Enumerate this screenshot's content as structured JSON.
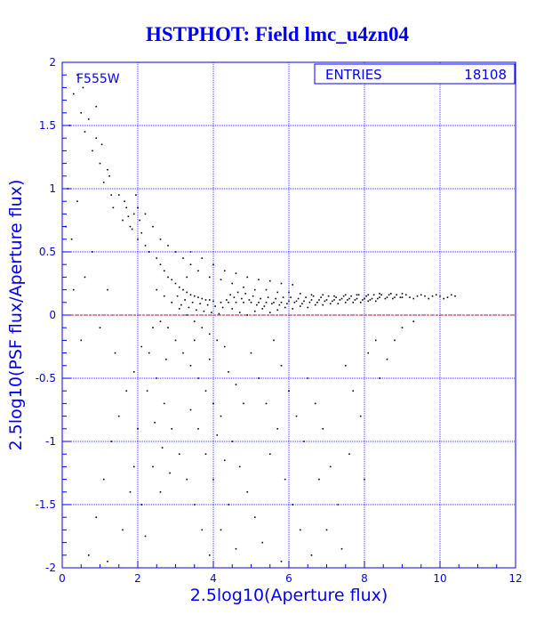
{
  "chart_data": {
    "type": "scatter",
    "title": "HSTPHOT: Field lmc_u4zn04",
    "xlabel": "2.5log10(Aperture flux)",
    "ylabel": "2.5log10(PSF flux/Aperture flux)",
    "xlim": [
      0,
      12
    ],
    "ylim": [
      -2,
      2
    ],
    "x_ticks": [
      "0",
      "2",
      "4",
      "6",
      "8",
      "10",
      "12"
    ],
    "y_ticks": [
      "-2",
      "-1.5",
      "-1",
      "-0.5",
      "0",
      "0.5",
      "1",
      "1.5",
      "2"
    ],
    "grid": true,
    "reference_line": {
      "y": 0,
      "color": "#ff0000",
      "style": "dashed"
    },
    "filter_label": "F555W",
    "stats_box": {
      "label": "ENTRIES",
      "value": "18108"
    },
    "point_color": "#000000",
    "axis_color": "#0000ff",
    "grid_color": "#0000ff",
    "series": [
      {
        "points": [
          [
            0.3,
            1.75
          ],
          [
            0.5,
            1.6
          ],
          [
            0.6,
            1.45
          ],
          [
            0.7,
            1.55
          ],
          [
            0.8,
            1.3
          ],
          [
            0.9,
            1.4
          ],
          [
            1.0,
            1.2
          ],
          [
            1.1,
            1.05
          ],
          [
            1.2,
            1.15
          ],
          [
            1.3,
            0.95
          ],
          [
            0.4,
            1.9
          ],
          [
            0.55,
            1.8
          ],
          [
            0.9,
            1.65
          ],
          [
            1.05,
            1.35
          ],
          [
            1.25,
            1.1
          ],
          [
            1.35,
            0.85
          ],
          [
            1.5,
            0.95
          ],
          [
            1.6,
            0.75
          ],
          [
            1.7,
            0.85
          ],
          [
            1.8,
            0.7
          ],
          [
            1.9,
            0.8
          ],
          [
            2.0,
            0.6
          ],
          [
            2.1,
            0.65
          ],
          [
            2.2,
            0.55
          ],
          [
            2.3,
            0.5
          ],
          [
            1.65,
            0.9
          ],
          [
            1.75,
            0.78
          ],
          [
            1.85,
            0.68
          ],
          [
            0.2,
            1.5
          ],
          [
            0.15,
            1.0
          ],
          [
            0.25,
            0.6
          ],
          [
            0.4,
            0.9
          ],
          [
            0.6,
            0.3
          ],
          [
            0.8,
            0.5
          ],
          [
            1.0,
            -0.1
          ],
          [
            1.2,
            0.2
          ],
          [
            1.4,
            -0.3
          ],
          [
            1.5,
            -0.8
          ],
          [
            1.3,
            -1.0
          ],
          [
            1.1,
            -1.3
          ],
          [
            0.9,
            -1.6
          ],
          [
            0.7,
            -1.9
          ],
          [
            1.2,
            -1.95
          ],
          [
            1.6,
            -1.7
          ],
          [
            1.8,
            -1.4
          ],
          [
            1.9,
            -1.2
          ],
          [
            2.0,
            -0.9
          ],
          [
            2.1,
            -1.5
          ],
          [
            2.2,
            -1.75
          ],
          [
            2.4,
            -1.2
          ],
          [
            2.5,
            0.45
          ],
          [
            2.6,
            0.4
          ],
          [
            2.7,
            0.35
          ],
          [
            2.8,
            0.3
          ],
          [
            2.9,
            0.28
          ],
          [
            3.0,
            0.25
          ],
          [
            3.1,
            0.22
          ],
          [
            3.2,
            0.2
          ],
          [
            3.3,
            0.18
          ],
          [
            3.4,
            0.16
          ],
          [
            3.5,
            0.15
          ],
          [
            3.6,
            0.14
          ],
          [
            3.7,
            0.13
          ],
          [
            3.8,
            0.12
          ],
          [
            3.9,
            0.12
          ],
          [
            4.0,
            0.11
          ],
          [
            4.2,
            0.1
          ],
          [
            4.4,
            0.1
          ],
          [
            4.6,
            0.1
          ],
          [
            4.8,
            0.1
          ],
          [
            5.0,
            0.1
          ],
          [
            5.2,
            0.1
          ],
          [
            5.4,
            0.1
          ],
          [
            5.6,
            0.1
          ],
          [
            5.8,
            0.1
          ],
          [
            6.0,
            0.11
          ],
          [
            6.2,
            0.11
          ],
          [
            6.4,
            0.11
          ],
          [
            6.6,
            0.12
          ],
          [
            6.8,
            0.12
          ],
          [
            7.0,
            0.12
          ],
          [
            7.2,
            0.12
          ],
          [
            7.4,
            0.13
          ],
          [
            7.6,
            0.13
          ],
          [
            7.8,
            0.13
          ],
          [
            8.0,
            0.13
          ],
          [
            8.2,
            0.13
          ],
          [
            8.4,
            0.14
          ],
          [
            8.6,
            0.14
          ],
          [
            8.8,
            0.14
          ],
          [
            9.0,
            0.14
          ],
          [
            9.2,
            0.14
          ],
          [
            9.4,
            0.15
          ],
          [
            9.6,
            0.15
          ],
          [
            9.8,
            0.15
          ],
          [
            10.0,
            0.15
          ],
          [
            10.2,
            0.14
          ],
          [
            10.4,
            0.15
          ],
          [
            2.5,
            0.2
          ],
          [
            2.7,
            0.15
          ],
          [
            2.9,
            0.1
          ],
          [
            3.1,
            0.05
          ],
          [
            3.3,
            0.0
          ],
          [
            3.5,
            -0.05
          ],
          [
            3.7,
            -0.1
          ],
          [
            3.9,
            -0.15
          ],
          [
            4.1,
            -0.2
          ],
          [
            4.3,
            -0.25
          ],
          [
            3.2,
            -0.3
          ],
          [
            3.4,
            -0.4
          ],
          [
            3.6,
            -0.5
          ],
          [
            3.8,
            -0.6
          ],
          [
            4.0,
            -0.7
          ],
          [
            4.2,
            -0.8
          ],
          [
            3.5,
            -0.2
          ],
          [
            3.9,
            -0.35
          ],
          [
            4.4,
            -0.45
          ],
          [
            4.6,
            -0.55
          ],
          [
            2.8,
            -0.1
          ],
          [
            3.0,
            -0.2
          ],
          [
            3.3,
            0.3
          ],
          [
            3.6,
            0.35
          ],
          [
            3.9,
            0.3
          ],
          [
            4.2,
            0.28
          ],
          [
            4.5,
            0.25
          ],
          [
            4.8,
            0.22
          ],
          [
            5.1,
            0.2
          ],
          [
            5.4,
            0.2
          ],
          [
            5.7,
            0.18
          ],
          [
            6.0,
            0.18
          ],
          [
            6.3,
            0.17
          ],
          [
            6.6,
            0.16
          ],
          [
            6.9,
            0.16
          ],
          [
            7.2,
            0.15
          ],
          [
            7.5,
            0.16
          ],
          [
            7.8,
            0.16
          ],
          [
            8.1,
            0.16
          ],
          [
            8.4,
            0.17
          ],
          [
            8.7,
            0.17
          ],
          [
            9.0,
            0.17
          ],
          [
            4.5,
            0.05
          ],
          [
            4.7,
            0.02
          ],
          [
            4.9,
            0.0
          ],
          [
            5.1,
            0.03
          ],
          [
            5.3,
            0.05
          ],
          [
            5.5,
            0.02
          ],
          [
            5.7,
            0.04
          ],
          [
            5.9,
            0.06
          ],
          [
            6.1,
            0.05
          ],
          [
            6.3,
            0.07
          ],
          [
            6.5,
            0.06
          ],
          [
            6.7,
            0.08
          ],
          [
            6.9,
            0.08
          ],
          [
            7.1,
            0.09
          ],
          [
            7.3,
            0.09
          ],
          [
            7.5,
            0.1
          ],
          [
            7.7,
            0.1
          ],
          [
            7.9,
            0.1
          ],
          [
            8.1,
            0.11
          ],
          [
            8.3,
            0.11
          ],
          [
            3.0,
            0.5
          ],
          [
            3.2,
            0.45
          ],
          [
            3.4,
            0.4
          ],
          [
            2.6,
            0.6
          ],
          [
            2.8,
            0.55
          ],
          [
            2.4,
            0.7
          ],
          [
            2.2,
            0.8
          ],
          [
            2.0,
            0.85
          ],
          [
            1.95,
            0.95
          ],
          [
            2.05,
            0.75
          ],
          [
            4.0,
            0.4
          ],
          [
            4.3,
            0.35
          ],
          [
            4.6,
            0.33
          ],
          [
            4.9,
            0.3
          ],
          [
            5.2,
            0.28
          ],
          [
            5.5,
            0.27
          ],
          [
            5.8,
            0.25
          ],
          [
            6.1,
            0.24
          ],
          [
            3.7,
            0.45
          ],
          [
            3.4,
            0.5
          ],
          [
            2.3,
            -0.3
          ],
          [
            2.5,
            -0.5
          ],
          [
            2.7,
            -0.7
          ],
          [
            2.9,
            -0.9
          ],
          [
            3.1,
            -1.1
          ],
          [
            3.3,
            -1.3
          ],
          [
            3.5,
            -1.5
          ],
          [
            3.7,
            -1.7
          ],
          [
            3.9,
            -1.9
          ],
          [
            2.6,
            -1.4
          ],
          [
            4.5,
            -1.0
          ],
          [
            4.7,
            -1.2
          ],
          [
            4.9,
            -1.4
          ],
          [
            5.1,
            -1.6
          ],
          [
            5.3,
            -1.8
          ],
          [
            5.5,
            -1.1
          ],
          [
            5.7,
            -0.9
          ],
          [
            5.9,
            -1.3
          ],
          [
            6.1,
            -1.5
          ],
          [
            6.3,
            -1.7
          ],
          [
            6.5,
            -0.5
          ],
          [
            6.7,
            -0.7
          ],
          [
            6.9,
            -0.9
          ],
          [
            7.1,
            -1.2
          ],
          [
            7.3,
            -1.5
          ],
          [
            7.5,
            -0.4
          ],
          [
            7.7,
            -0.6
          ],
          [
            7.9,
            -0.8
          ],
          [
            8.1,
            -0.3
          ],
          [
            8.3,
            -0.2
          ],
          [
            5.0,
            -0.3
          ],
          [
            5.2,
            -0.5
          ],
          [
            5.4,
            -0.7
          ],
          [
            5.6,
            -0.2
          ],
          [
            5.8,
            -0.4
          ],
          [
            6.0,
            -0.6
          ],
          [
            6.2,
            -0.8
          ],
          [
            6.4,
            -1.0
          ],
          [
            4.8,
            -0.7
          ],
          [
            4.4,
            -1.5
          ],
          [
            4.2,
            -1.7
          ],
          [
            4.0,
            -1.3
          ],
          [
            3.8,
            -1.1
          ],
          [
            3.6,
            -0.9
          ],
          [
            3.4,
            -0.75
          ],
          [
            4.1,
            -0.95
          ],
          [
            4.3,
            -1.15
          ],
          [
            4.6,
            -1.85
          ],
          [
            5.8,
            -1.95
          ],
          [
            6.6,
            -1.9
          ],
          [
            7.0,
            -1.7
          ],
          [
            7.4,
            -1.85
          ],
          [
            6.8,
            -1.3
          ],
          [
            7.6,
            -1.1
          ],
          [
            8.0,
            -1.3
          ],
          [
            8.4,
            -0.5
          ],
          [
            8.6,
            -0.35
          ],
          [
            8.8,
            -0.2
          ],
          [
            9.0,
            -0.1
          ],
          [
            9.3,
            -0.05
          ],
          [
            3.05,
            0.15
          ],
          [
            3.15,
            0.08
          ],
          [
            3.25,
            0.12
          ],
          [
            3.35,
            0.06
          ],
          [
            3.45,
            0.1
          ],
          [
            3.55,
            0.04
          ],
          [
            3.65,
            0.09
          ],
          [
            3.75,
            0.03
          ],
          [
            3.85,
            0.08
          ],
          [
            3.95,
            0.02
          ],
          [
            4.05,
            0.07
          ],
          [
            4.15,
            0.01
          ],
          [
            4.25,
            0.06
          ],
          [
            4.35,
            0.12
          ],
          [
            4.45,
            0.16
          ],
          [
            4.55,
            0.14
          ],
          [
            4.65,
            0.18
          ],
          [
            4.75,
            0.13
          ],
          [
            4.85,
            0.17
          ],
          [
            4.95,
            0.12
          ],
          [
            5.05,
            0.15
          ],
          [
            5.15,
            0.08
          ],
          [
            5.25,
            0.13
          ],
          [
            5.35,
            0.07
          ],
          [
            5.45,
            0.14
          ],
          [
            5.55,
            0.09
          ],
          [
            5.65,
            0.13
          ],
          [
            5.75,
            0.08
          ],
          [
            5.85,
            0.14
          ],
          [
            5.95,
            0.09
          ],
          [
            6.05,
            0.14
          ],
          [
            6.15,
            0.1
          ],
          [
            6.25,
            0.13
          ],
          [
            6.35,
            0.09
          ],
          [
            6.45,
            0.14
          ],
          [
            6.55,
            0.1
          ],
          [
            6.65,
            0.15
          ],
          [
            6.75,
            0.1
          ],
          [
            6.85,
            0.14
          ],
          [
            6.95,
            0.11
          ],
          [
            7.05,
            0.15
          ],
          [
            7.15,
            0.11
          ],
          [
            7.25,
            0.14
          ],
          [
            7.35,
            0.12
          ],
          [
            7.45,
            0.15
          ],
          [
            7.55,
            0.12
          ],
          [
            7.65,
            0.15
          ],
          [
            7.75,
            0.12
          ],
          [
            7.85,
            0.16
          ],
          [
            7.95,
            0.12
          ],
          [
            8.05,
            0.15
          ],
          [
            8.15,
            0.12
          ],
          [
            8.25,
            0.16
          ],
          [
            8.35,
            0.13
          ],
          [
            8.45,
            0.16
          ],
          [
            8.55,
            0.13
          ],
          [
            8.65,
            0.16
          ],
          [
            8.75,
            0.13
          ],
          [
            8.85,
            0.16
          ],
          [
            8.95,
            0.14
          ],
          [
            9.1,
            0.16
          ],
          [
            9.3,
            0.13
          ],
          [
            9.5,
            0.16
          ],
          [
            9.7,
            0.13
          ],
          [
            9.9,
            0.16
          ],
          [
            10.1,
            0.13
          ],
          [
            10.3,
            0.16
          ],
          [
            0.1,
            0.7
          ],
          [
            0.3,
            0.2
          ],
          [
            0.5,
            -0.2
          ],
          [
            1.7,
            -0.6
          ],
          [
            1.9,
            -0.45
          ],
          [
            2.1,
            -0.25
          ],
          [
            2.25,
            -0.6
          ],
          [
            2.45,
            -0.85
          ],
          [
            2.65,
            -1.05
          ],
          [
            2.85,
            -1.25
          ],
          [
            2.4,
            -0.1
          ],
          [
            2.6,
            -0.05
          ],
          [
            2.75,
            -0.35
          ]
        ]
      }
    ]
  }
}
